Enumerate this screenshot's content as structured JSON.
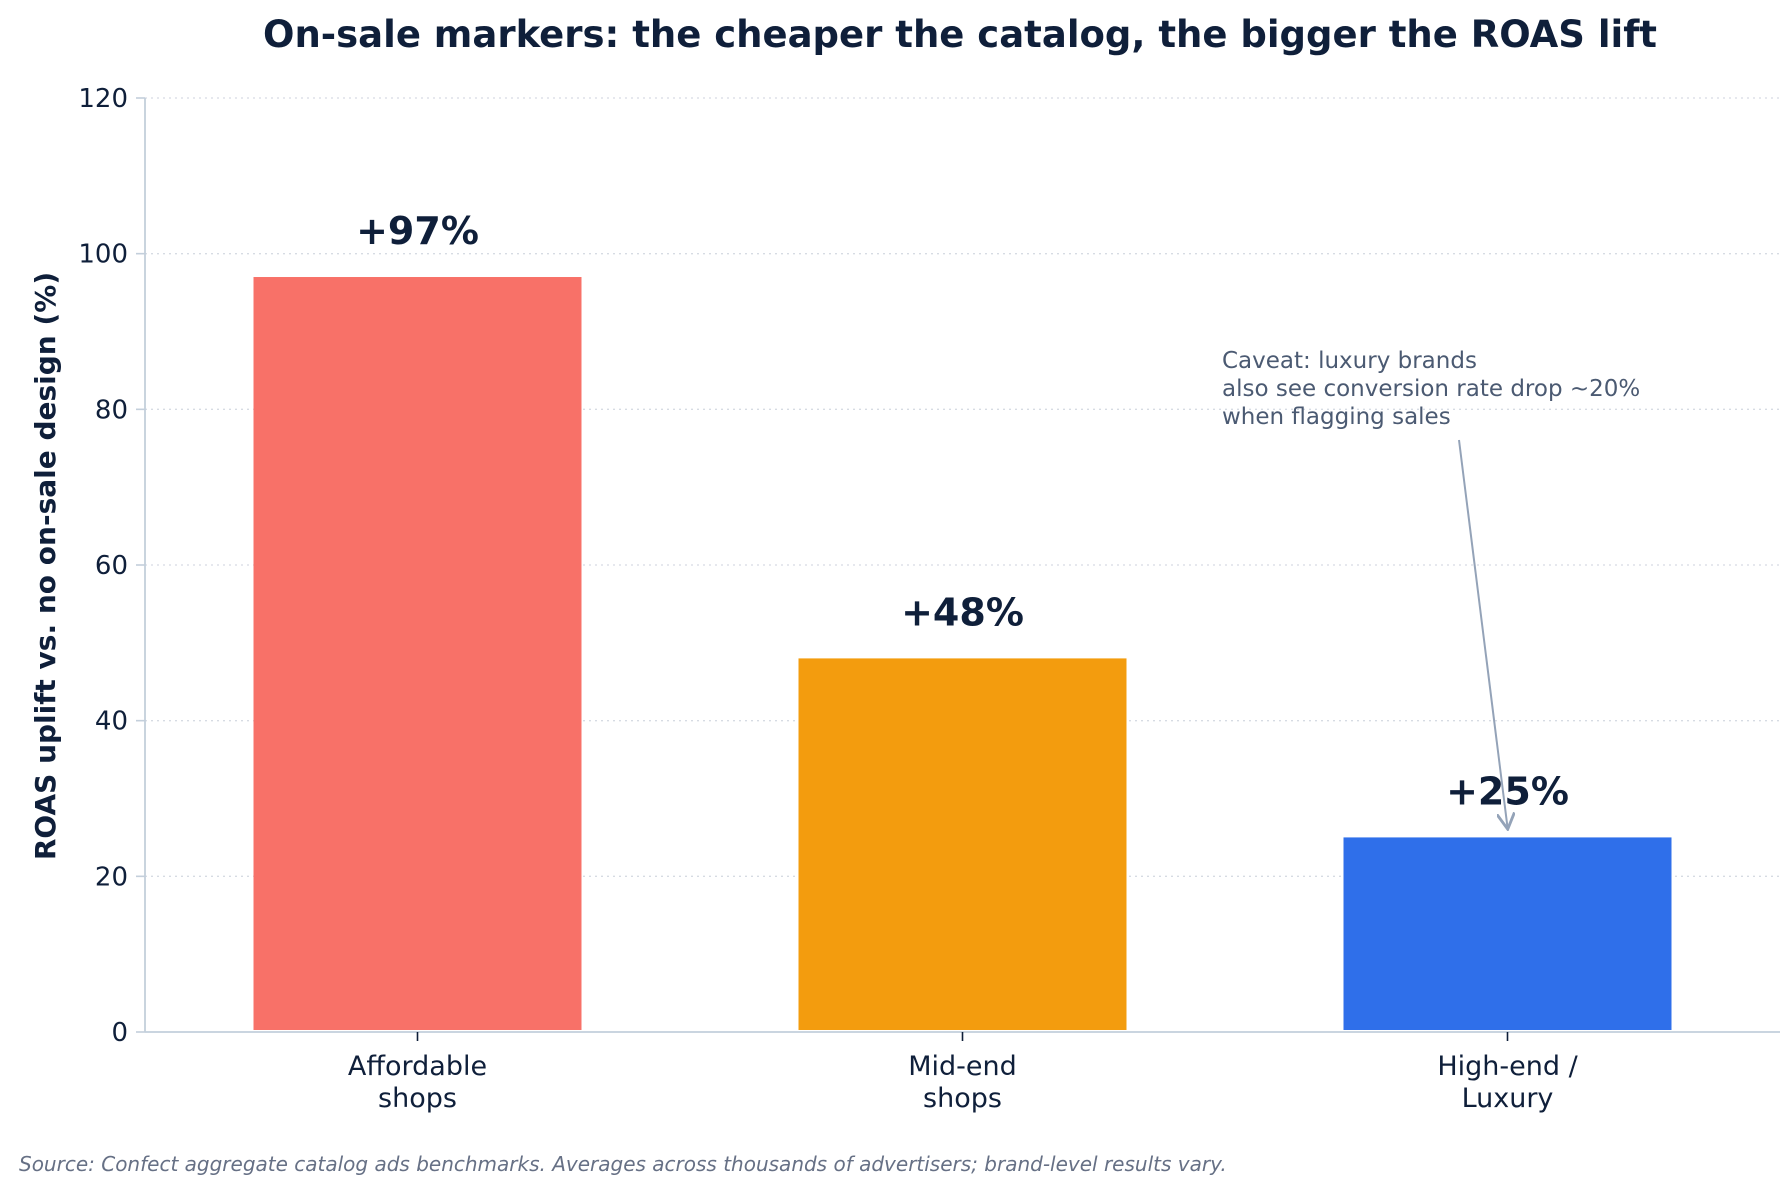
{
  "chart_data": {
    "type": "bar",
    "title": "On-sale markers: the cheaper the catalog, the bigger the ROAS lift",
    "xlabel": "",
    "ylabel": "ROAS uplift vs. no on-sale design (%)",
    "ylim": [
      0,
      120
    ],
    "yticks": [
      0,
      20,
      40,
      60,
      80,
      100,
      120
    ],
    "grid": "horizontal dotted",
    "categories": [
      [
        "Affordable",
        "shops"
      ],
      [
        "Mid-end",
        "shops"
      ],
      [
        "High-end /",
        "Luxury"
      ]
    ],
    "values": [
      97,
      48,
      25
    ],
    "data_labels": [
      "+97%",
      "+48%",
      "+25%"
    ],
    "colors": [
      "#f87168",
      "#f39c0e",
      "#2f6fea"
    ],
    "annotation": {
      "lines": [
        "Caveat: luxury brands",
        "also see conversion rate drop ~20%",
        "when flagging sales"
      ],
      "points_to": "High-end / Luxury"
    },
    "source": "Source: Confect aggregate catalog ads benchmarks. Averages across thousands of advertisers; brand-level results vary."
  }
}
